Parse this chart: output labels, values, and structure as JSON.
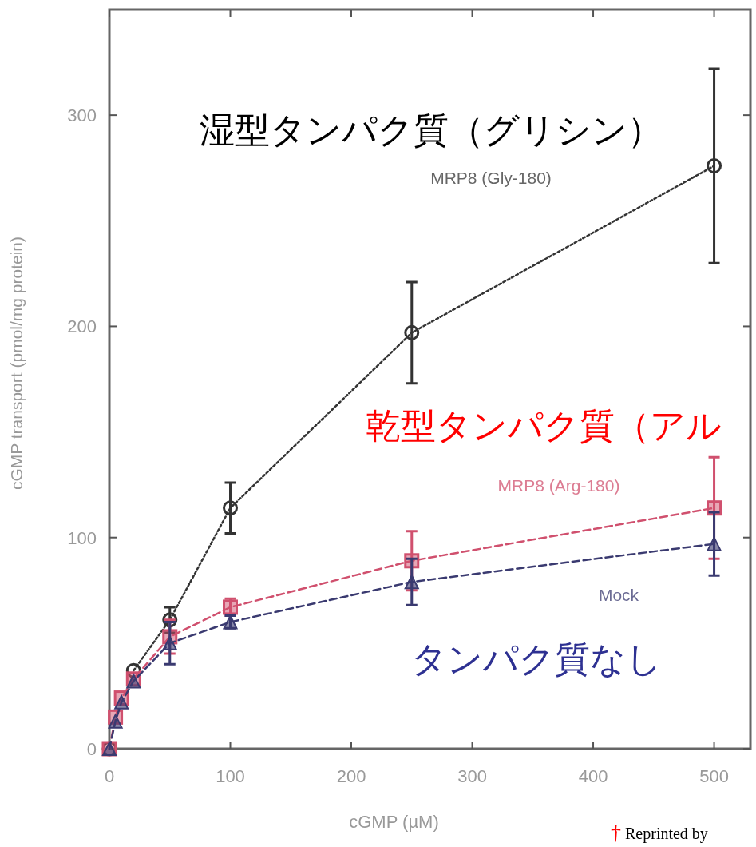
{
  "chart_data": {
    "type": "line",
    "xlabel": "cGMP (µM)",
    "ylabel": "cGMP transport (pmol/mg protein)",
    "x": [
      0,
      5,
      10,
      20,
      50,
      100,
      250,
      500
    ],
    "xlim": [
      0,
      530
    ],
    "xticks": [
      0,
      100,
      200,
      300,
      400,
      500
    ],
    "ylim": [
      0,
      350
    ],
    "yticks": [
      0,
      100,
      200,
      300
    ],
    "grid": false,
    "series": [
      {
        "name": "MRP8 (Gly-180)",
        "color": "#333333",
        "marker": "circle",
        "line_style": "dotted",
        "values": [
          0,
          null,
          null,
          37,
          61,
          114,
          197,
          276
        ],
        "errors": [
          null,
          null,
          null,
          null,
          6,
          12,
          24,
          46
        ]
      },
      {
        "name": "MRP8 (Arg-180)",
        "color": "#d0506e",
        "marker": "square",
        "line_style": "dashed",
        "values": [
          0,
          15,
          24,
          33,
          53,
          67,
          89,
          114
        ],
        "errors": [
          null,
          null,
          null,
          null,
          8,
          4,
          14,
          24
        ]
      },
      {
        "name": "Mock",
        "color": "#3a3a70",
        "marker": "triangle",
        "line_style": "dashed",
        "values": [
          0,
          13,
          22,
          32,
          50,
          60,
          79,
          97
        ],
        "errors": [
          null,
          null,
          null,
          null,
          10,
          3,
          11,
          15
        ]
      }
    ],
    "annotations": [
      "湿型タンパク質（グリシン）",
      "乾型タンパク質（アル",
      "タンパク質なし",
      "† Reprinted by"
    ]
  }
}
